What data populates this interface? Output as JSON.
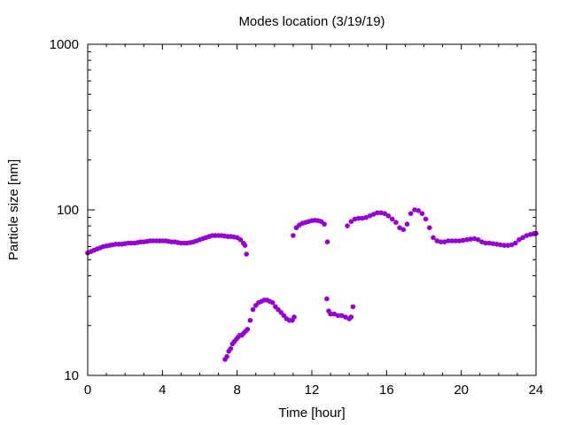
{
  "chart_data": {
    "type": "scatter",
    "title": "Modes location (3/19/19)",
    "xlabel": "Time [hour]",
    "ylabel": "Particle size [nm]",
    "xlim": [
      0,
      24
    ],
    "ylim": [
      10,
      1000
    ],
    "y_scale": "log",
    "grid": false,
    "legend": "none",
    "x_ticks": [
      0,
      4,
      8,
      12,
      16,
      20,
      24
    ],
    "x_tick_labels": [
      "0",
      "4",
      "8",
      "12",
      "16",
      "20",
      "24"
    ],
    "y_ticks": [
      10,
      100,
      1000
    ],
    "y_tick_labels": [
      "10",
      "100",
      "1000"
    ],
    "marker_color": "#9400d3",
    "series": [
      {
        "x": [
          0,
          0.17,
          0.33,
          0.5,
          0.67,
          0.83,
          1,
          1.17,
          1.33,
          1.5,
          1.67,
          1.83,
          2,
          2.17,
          2.33,
          2.5,
          2.67,
          2.83,
          3,
          3.17,
          3.33,
          3.5,
          3.67,
          3.83,
          4,
          4.17,
          4.33,
          4.5,
          4.67,
          4.83,
          5,
          5.17,
          5.33,
          5.5,
          5.67,
          5.83,
          6,
          6.17,
          6.33,
          6.5,
          6.67,
          6.83,
          7,
          7.17,
          7.33,
          7.5,
          7.67,
          7.83,
          8,
          8.17,
          8.33,
          8.42,
          8.5
        ],
        "y": [
          55,
          56,
          57,
          58,
          59,
          60,
          60.5,
          61,
          61.5,
          62,
          62,
          62,
          62.5,
          63,
          63,
          63,
          63.5,
          64,
          64,
          64.5,
          65,
          65,
          65,
          65,
          65,
          65,
          64.5,
          64,
          64,
          63.5,
          63,
          63,
          63,
          63.5,
          64,
          65,
          66,
          67,
          68,
          69,
          70,
          70,
          70,
          70,
          69.5,
          69,
          69,
          68.5,
          68,
          66,
          63,
          61,
          54
        ]
      },
      {
        "x": [
          7.35,
          7.45,
          7.55,
          7.65,
          7.75,
          7.85,
          7.95,
          8.05,
          8.15,
          8.25,
          8.35,
          8.45,
          8.55,
          8.7,
          8.85,
          9,
          9.15,
          9.3,
          9.45,
          9.6,
          9.75,
          9.9,
          10.05,
          10.2,
          10.35,
          10.5,
          10.65,
          10.8,
          10.95,
          11.05
        ],
        "y": [
          12.5,
          13,
          14,
          14.5,
          15.5,
          16,
          16.5,
          17,
          17.5,
          17.5,
          18,
          18.5,
          19,
          21.5,
          25,
          26.5,
          27.5,
          28,
          28.5,
          28.5,
          28,
          27.5,
          26,
          25,
          24,
          23,
          22,
          21.5,
          21.5,
          22.5
        ]
      },
      {
        "x": [
          11,
          11.17,
          11.33,
          11.5,
          11.67,
          11.83,
          12,
          12.17,
          12.33,
          12.5,
          12.67,
          12.83
        ],
        "y": [
          70,
          78,
          81,
          83,
          84,
          85,
          86,
          86.5,
          86,
          85,
          82,
          64
        ]
      },
      {
        "x": [
          12.8,
          12.9,
          13,
          13.2,
          13.4,
          13.6,
          13.8,
          14,
          14.1,
          14.2
        ],
        "y": [
          29,
          24.5,
          23.5,
          23.5,
          23,
          23,
          22.5,
          22,
          22.5,
          26
        ]
      },
      {
        "x": [
          13.9,
          14.1,
          14.3,
          14.5,
          14.7,
          14.9,
          15.1,
          15.3,
          15.5,
          15.7,
          15.9,
          16.1,
          16.3,
          16.5,
          16.7,
          16.9,
          17.1,
          17.3,
          17.5,
          17.7,
          17.9,
          18.1,
          18.3,
          18.5,
          18.7,
          18.9,
          19.1,
          19.3,
          19.5,
          19.7,
          19.9,
          20.1,
          20.3,
          20.5,
          20.7,
          20.9,
          21.1,
          21.3,
          21.5,
          21.7,
          21.9,
          22.1,
          22.3,
          22.5,
          22.7,
          22.9,
          23.1,
          23.3,
          23.5,
          23.7,
          23.9,
          24
        ],
        "y": [
          80,
          85,
          88,
          89,
          89,
          90,
          92,
          94,
          96,
          96,
          95,
          92,
          88,
          84,
          78,
          76,
          82,
          95,
          100,
          99,
          95,
          88,
          78,
          68,
          65,
          64,
          64,
          65,
          65,
          65,
          65,
          65.5,
          66,
          66.5,
          67,
          66,
          64,
          63,
          63,
          62.5,
          62,
          61.5,
          61,
          61,
          61.5,
          63,
          66,
          68,
          70,
          71,
          72,
          72
        ]
      }
    ]
  }
}
